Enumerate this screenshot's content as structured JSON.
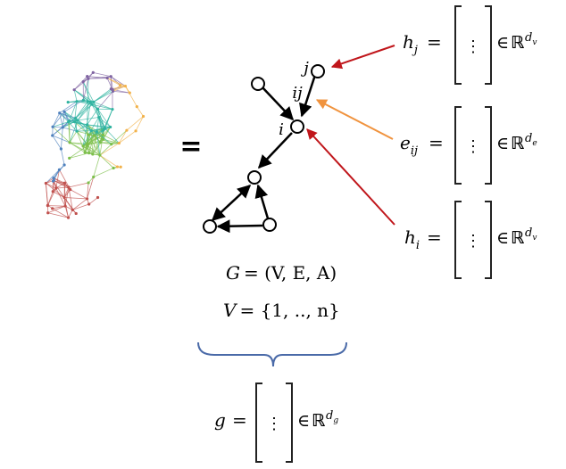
{
  "equals_sign": "=",
  "graph": {
    "node_labels": {
      "i": "i",
      "j": "j",
      "edge_ij": "ij"
    }
  },
  "definitions": {
    "graph_lhs": "G",
    "graph_rhs": "= (V, E, A)",
    "vertices_lhs": "V",
    "vertices_rhs": "= {1, .., n}"
  },
  "vectors": {
    "h_j": {
      "sym": "h",
      "sub": "j",
      "space": "ℝ",
      "dim": "d",
      "dim_sub": "v"
    },
    "e_ij": {
      "sym": "e",
      "sub": "ij",
      "space": "ℝ",
      "dim": "d",
      "dim_sub": "e"
    },
    "h_i": {
      "sym": "h",
      "sub": "i",
      "space": "ℝ",
      "dim": "d",
      "dim_sub": "v"
    },
    "g": {
      "sym": "g",
      "sub": "",
      "space": "ℝ",
      "dim": "d",
      "dim_sub": "g"
    },
    "equals": "=",
    "element_of": "∈",
    "ellipsis": "⋮"
  },
  "colors": {
    "h_j_arrow": "#c0161b",
    "e_ij_arrow": "#f0933e",
    "h_i_arrow": "#c0161b",
    "brace": "#4a6aa8",
    "graph_edges": "#000000"
  },
  "icons": {
    "molecule": "protein-network-image"
  }
}
